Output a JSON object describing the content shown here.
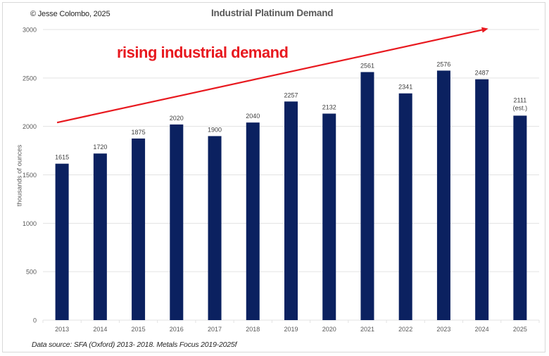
{
  "header": {
    "copyright": "© Jesse Colombo, 2025",
    "title": "Industrial Platinum Demand"
  },
  "annotation": {
    "text": "rising industrial demand",
    "color": "#e8191f",
    "arrow": {
      "from": {
        "category": "2013",
        "value": 2040
      },
      "to": {
        "category": "2024+",
        "value": 3010
      }
    }
  },
  "footer": {
    "source": "Data source: SFA (Oxford) 2013- 2018. Metals Focus 2019-2025f"
  },
  "colors": {
    "bar": "#0b2160",
    "grid": "#e3e3e3",
    "axis_text": "#595959",
    "label_text": "#404040"
  },
  "chart_data": {
    "type": "bar",
    "title": "Industrial Platinum Demand",
    "xlabel": "",
    "ylabel": "thousands of ounces",
    "ylim": [
      0,
      3000
    ],
    "yticks": [
      0,
      500,
      1000,
      1500,
      2000,
      2500,
      3000
    ],
    "grid": true,
    "legend": "none",
    "categories": [
      "2013",
      "2014",
      "2015",
      "2016",
      "2017",
      "2018",
      "2019",
      "2020",
      "2021",
      "2022",
      "2023",
      "2024",
      "2025"
    ],
    "values": [
      1615,
      1720,
      1875,
      2020,
      1900,
      2040,
      2257,
      2132,
      2561,
      2341,
      2576,
      2487,
      2111
    ],
    "data_labels": [
      "1615",
      "1720",
      "1875",
      "2020",
      "1900",
      "2040",
      "2257",
      "2132",
      "2561",
      "2341",
      "2576",
      "2487",
      "2111"
    ],
    "data_label_notes": [
      "",
      "",
      "",
      "",
      "",
      "",
      "",
      "",
      "",
      "",
      "",
      "",
      "(est.)"
    ]
  }
}
